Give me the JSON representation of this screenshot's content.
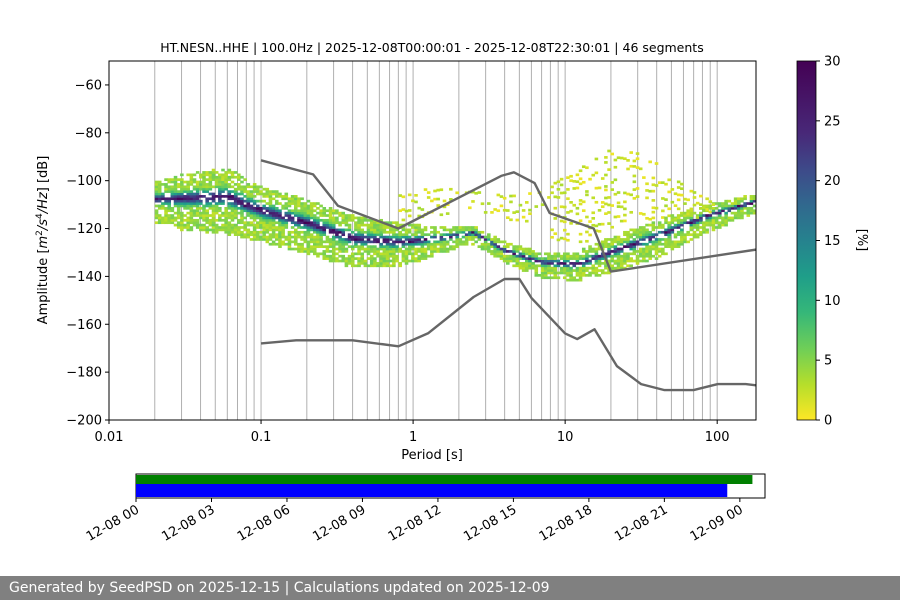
{
  "chart_data": [
    {
      "type": "heatmap",
      "title": "HT.NESN..HHE | 100.0Hz | 2025-12-08T00:00:01 - 2025-12-08T22:30:01 | 46 segments",
      "xlabel": "Period [s]",
      "ylabel": "Amplitude [m²/s⁴/Hz] [dB]",
      "x_scale": "log",
      "xlim": [
        0.01,
        180
      ],
      "ylim": [
        -200,
        -50
      ],
      "xticks": [
        0.01,
        0.1,
        1,
        10,
        100
      ],
      "xtick_labels": [
        "0.01",
        "0.1",
        "1",
        "10",
        "100"
      ],
      "yticks": [
        -60,
        -80,
        -100,
        -120,
        -140,
        -160,
        -180,
        -200
      ],
      "ytick_labels": [
        "−60",
        "−80",
        "−100",
        "−120",
        "−140",
        "−160",
        "−180",
        "−200"
      ],
      "grid": "vertical log grid",
      "colormap": "viridis_r",
      "colorbar": {
        "label": "[%]",
        "range": [
          0,
          30
        ],
        "ticks": [
          0,
          5,
          10,
          15,
          20,
          25,
          30
        ],
        "tick_labels": [
          "0",
          "5",
          "10",
          "15",
          "20",
          "25",
          "30"
        ]
      },
      "reference_curves": [
        {
          "id": "new-high-noise-model",
          "color": "#666666",
          "x": [
            0.1,
            0.22,
            0.32,
            0.8,
            3.8,
            4.6,
            6.3,
            7.9,
            15.4,
            20,
            180
          ],
          "y": [
            -91.5,
            -97.4,
            -110.5,
            -120,
            -98,
            -96.5,
            -101,
            -113.5,
            -120,
            -138,
            -128.8
          ]
        },
        {
          "id": "new-low-noise-model",
          "color": "#666666",
          "x": [
            0.1,
            0.17,
            0.4,
            0.8,
            1.26,
            2.5,
            4,
            5,
            6,
            10,
            12,
            15.6,
            21.9,
            31.6,
            45,
            70,
            101,
            154,
            180
          ],
          "y": [
            -168,
            -166.7,
            -166.7,
            -169.2,
            -163.7,
            -148.6,
            -141.1,
            -141.1,
            -149,
            -163.8,
            -166.2,
            -162.1,
            -177.5,
            -185,
            -187.5,
            -187.5,
            -185,
            -185,
            -185.5
          ]
        }
      ],
      "density_bands": [
        {
          "id": "main-band",
          "x": [
            0.02,
            0.03,
            0.06,
            0.1,
            0.2,
            0.4,
            0.8,
            1.5,
            2.5,
            4,
            7,
            12,
            20,
            40,
            80,
            150,
            180
          ],
          "ymin": [
            -117,
            -120,
            -122,
            -125,
            -130,
            -136,
            -136,
            -130,
            -126,
            -134,
            -140,
            -142,
            -138,
            -132,
            -122,
            -115,
            -113
          ],
          "ymax": [
            -101,
            -98,
            -95,
            -103,
            -108,
            -115,
            -118,
            -120,
            -119,
            -126,
            -130,
            -130,
            -124,
            -117,
            -111,
            -107,
            -106
          ]
        },
        {
          "id": "sparse-upper-band",
          "x": [
            0.8,
            1.2,
            2,
            4,
            7,
            10,
            15,
            22,
            30,
            50,
            80,
            100
          ],
          "ymin": [
            -118,
            -116,
            -114,
            -116,
            -122,
            -128,
            -126,
            -120,
            -118,
            -118,
            -115,
            -113
          ],
          "ymax": [
            -107,
            -105,
            -105,
            -107,
            -105,
            -99,
            -93,
            -87,
            -89,
            -97,
            -107,
            -112
          ]
        }
      ]
    },
    {
      "type": "bar",
      "id": "data-availability",
      "xlim": [
        "2025-12-08T00:00",
        "2025-12-09T01:00"
      ],
      "xtick_labels": [
        "12-08 00",
        "12-08 03",
        "12-08 06",
        "12-08 09",
        "12-08 12",
        "12-08 15",
        "12-08 18",
        "12-08 21",
        "12-09 00"
      ],
      "series": [
        {
          "color": "#008000",
          "start": "2025-12-08T00:00:01",
          "end": "2025-12-09T00:30:00"
        },
        {
          "color": "#0000ff",
          "start": "2025-12-08T00:00:01",
          "end": "2025-12-08T23:30:00"
        }
      ]
    }
  ],
  "footer": {
    "text": "Generated by SeedPSD on 2025-12-15 | Calculations updated on 2025-12-09"
  }
}
